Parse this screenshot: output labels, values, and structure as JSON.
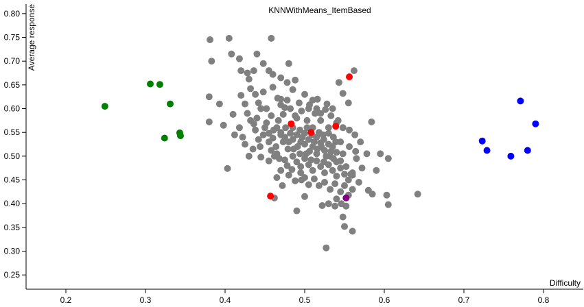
{
  "chart_data": {
    "type": "scatter",
    "title": "KNNWithMeans_ItemBased",
    "xlabel": "Difficulty",
    "ylabel": "Average response",
    "xlim": [
      0.15,
      0.85
    ],
    "ylim": [
      0.22,
      0.82
    ],
    "grid": false,
    "x_ticks": [
      0.2,
      0.3,
      0.4,
      0.5,
      0.6,
      0.7,
      0.8
    ],
    "y_ticks": [
      0.25,
      0.3,
      0.35,
      0.4,
      0.45,
      0.5,
      0.55,
      0.6,
      0.65,
      0.7,
      0.75,
      0.8
    ],
    "x_tick_labels": [
      "0.2",
      "0.3",
      "0.4",
      "0.5",
      "0.6",
      "0.7",
      "0.8"
    ],
    "y_tick_labels": [
      "0.25",
      "0.30",
      "0.35",
      "0.40",
      "0.45",
      "0.50",
      "0.55",
      "0.60",
      "0.65",
      "0.70",
      "0.75",
      "0.80"
    ],
    "series": [
      {
        "color": "#808080",
        "points": [
          [
            0.381,
            0.745
          ],
          [
            0.405,
            0.748
          ],
          [
            0.458,
            0.748
          ],
          [
            0.383,
            0.7
          ],
          [
            0.408,
            0.715
          ],
          [
            0.418,
            0.705
          ],
          [
            0.44,
            0.715
          ],
          [
            0.48,
            0.695
          ],
          [
            0.38,
            0.625
          ],
          [
            0.38,
            0.572
          ],
          [
            0.42,
            0.68
          ],
          [
            0.428,
            0.675
          ],
          [
            0.43,
            0.662
          ],
          [
            0.436,
            0.68
          ],
          [
            0.448,
            0.695
          ],
          [
            0.455,
            0.68
          ],
          [
            0.46,
            0.672
          ],
          [
            0.47,
            0.665
          ],
          [
            0.478,
            0.655
          ],
          [
            0.488,
            0.66
          ],
          [
            0.42,
            0.628
          ],
          [
            0.425,
            0.61
          ],
          [
            0.432,
            0.642
          ],
          [
            0.438,
            0.63
          ],
          [
            0.442,
            0.612
          ],
          [
            0.448,
            0.635
          ],
          [
            0.452,
            0.6
          ],
          [
            0.46,
            0.645
          ],
          [
            0.466,
            0.622
          ],
          [
            0.47,
            0.608
          ],
          [
            0.473,
            0.588
          ],
          [
            0.478,
            0.618
          ],
          [
            0.482,
            0.6
          ],
          [
            0.485,
            0.64
          ],
          [
            0.49,
            0.58
          ],
          [
            0.493,
            0.612
          ],
          [
            0.496,
            0.595
          ],
          [
            0.5,
            0.63
          ],
          [
            0.503,
            0.575
          ],
          [
            0.506,
            0.608
          ],
          [
            0.51,
            0.56
          ],
          [
            0.513,
            0.59
          ],
          [
            0.516,
            0.62
          ],
          [
            0.52,
            0.575
          ],
          [
            0.523,
            0.545
          ],
          [
            0.526,
            0.598
          ],
          [
            0.53,
            0.56
          ],
          [
            0.533,
            0.585
          ],
          [
            0.536,
            0.54
          ],
          [
            0.54,
            0.57
          ],
          [
            0.418,
            0.56
          ],
          [
            0.422,
            0.54
          ],
          [
            0.425,
            0.525
          ],
          [
            0.428,
            0.59
          ],
          [
            0.432,
            0.575
          ],
          [
            0.435,
            0.515
          ],
          [
            0.438,
            0.555
          ],
          [
            0.442,
            0.535
          ],
          [
            0.445,
            0.6
          ],
          [
            0.448,
            0.545
          ],
          [
            0.452,
            0.57
          ],
          [
            0.455,
            0.53
          ],
          [
            0.458,
            0.585
          ],
          [
            0.461,
            0.555
          ],
          [
            0.464,
            0.52
          ],
          [
            0.467,
            0.575
          ],
          [
            0.47,
            0.545
          ],
          [
            0.473,
            0.53
          ],
          [
            0.476,
            0.56
          ],
          [
            0.479,
            0.515
          ],
          [
            0.482,
            0.548
          ],
          [
            0.485,
            0.535
          ],
          [
            0.488,
            0.585
          ],
          [
            0.491,
            0.52
          ],
          [
            0.494,
            0.555
          ],
          [
            0.497,
            0.54
          ],
          [
            0.5,
            0.525
          ],
          [
            0.503,
            0.56
          ],
          [
            0.506,
            0.51
          ],
          [
            0.509,
            0.545
          ],
          [
            0.512,
            0.53
          ],
          [
            0.515,
            0.505
          ],
          [
            0.518,
            0.55
          ],
          [
            0.521,
            0.52
          ],
          [
            0.524,
            0.535
          ],
          [
            0.527,
            0.5
          ],
          [
            0.53,
            0.525
          ],
          [
            0.533,
            0.51
          ],
          [
            0.536,
            0.495
          ],
          [
            0.539,
            0.53
          ],
          [
            0.445,
            0.498
          ],
          [
            0.455,
            0.49
          ],
          [
            0.465,
            0.505
          ],
          [
            0.475,
            0.492
          ],
          [
            0.485,
            0.5
          ],
          [
            0.49,
            0.488
          ],
          [
            0.495,
            0.478
          ],
          [
            0.5,
            0.495
          ],
          [
            0.505,
            0.482
          ],
          [
            0.51,
            0.47
          ],
          [
            0.515,
            0.49
          ],
          [
            0.52,
            0.478
          ],
          [
            0.525,
            0.465
          ],
          [
            0.53,
            0.482
          ],
          [
            0.535,
            0.47
          ],
          [
            0.54,
            0.458
          ],
          [
            0.545,
            0.475
          ],
          [
            0.55,
            0.462
          ],
          [
            0.555,
            0.45
          ],
          [
            0.56,
            0.465
          ],
          [
            0.48,
            0.46
          ],
          [
            0.488,
            0.448
          ],
          [
            0.495,
            0.465
          ],
          [
            0.5,
            0.455
          ],
          [
            0.505,
            0.44
          ],
          [
            0.512,
            0.452
          ],
          [
            0.518,
            0.438
          ],
          [
            0.525,
            0.445
          ],
          [
            0.532,
            0.43
          ],
          [
            0.538,
            0.442
          ],
          [
            0.545,
            0.425
          ],
          [
            0.55,
            0.438
          ],
          [
            0.555,
            0.418
          ],
          [
            0.56,
            0.43
          ],
          [
            0.546,
            0.4
          ],
          [
            0.538,
            0.395
          ],
          [
            0.522,
            0.396
          ],
          [
            0.53,
            0.4
          ],
          [
            0.5,
            0.415
          ],
          [
            0.49,
            0.385
          ],
          [
            0.472,
            0.438
          ],
          [
            0.465,
            0.455
          ],
          [
            0.462,
            0.412
          ],
          [
            0.548,
            0.372
          ],
          [
            0.55,
            0.352
          ],
          [
            0.56,
            0.342
          ],
          [
            0.527,
            0.307
          ],
          [
            0.552,
            0.395
          ],
          [
            0.54,
            0.41
          ],
          [
            0.558,
            0.462
          ],
          [
            0.545,
            0.49
          ],
          [
            0.552,
            0.478
          ],
          [
            0.56,
            0.46
          ],
          [
            0.565,
            0.495
          ],
          [
            0.568,
            0.445
          ],
          [
            0.572,
            0.475
          ],
          [
            0.578,
            0.505
          ],
          [
            0.58,
            0.428
          ],
          [
            0.585,
            0.42
          ],
          [
            0.59,
            0.47
          ],
          [
            0.595,
            0.505
          ],
          [
            0.603,
            0.418
          ],
          [
            0.605,
            0.495
          ],
          [
            0.605,
            0.398
          ],
          [
            0.642,
            0.42
          ],
          [
            0.584,
            0.572
          ],
          [
            0.562,
            0.68
          ],
          [
            0.543,
            0.655
          ],
          [
            0.548,
            0.632
          ],
          [
            0.555,
            0.612
          ],
          [
            0.403,
            0.474
          ],
          [
            0.393,
            0.61
          ],
          [
            0.398,
            0.565
          ],
          [
            0.41,
            0.588
          ],
          [
            0.412,
            0.545
          ],
          [
            0.43,
            0.5
          ],
          [
            0.44,
            0.58
          ],
          [
            0.462,
            0.5
          ],
          [
            0.47,
            0.62
          ],
          [
            0.475,
            0.602
          ],
          [
            0.505,
            0.6
          ],
          [
            0.51,
            0.618
          ],
          [
            0.515,
            0.6
          ],
          [
            0.52,
            0.59
          ],
          [
            0.528,
            0.61
          ],
          [
            0.535,
            0.6
          ],
          [
            0.542,
            0.575
          ],
          [
            0.548,
            0.56
          ],
          [
            0.556,
            0.555
          ],
          [
            0.563,
            0.545
          ],
          [
            0.45,
            0.56
          ],
          [
            0.455,
            0.548
          ],
          [
            0.46,
            0.538
          ],
          [
            0.465,
            0.56
          ],
          [
            0.47,
            0.55
          ],
          [
            0.475,
            0.54
          ],
          [
            0.48,
            0.53
          ],
          [
            0.485,
            0.56
          ],
          [
            0.49,
            0.545
          ],
          [
            0.495,
            0.53
          ],
          [
            0.5,
            0.548
          ],
          [
            0.505,
            0.535
          ],
          [
            0.51,
            0.52
          ],
          [
            0.515,
            0.54
          ],
          [
            0.52,
            0.528
          ],
          [
            0.525,
            0.512
          ],
          [
            0.53,
            0.548
          ],
          [
            0.535,
            0.52
          ],
          [
            0.54,
            0.508
          ],
          [
            0.545,
            0.53
          ],
          [
            0.436,
            0.568
          ],
          [
            0.444,
            0.52
          ],
          [
            0.458,
            0.512
          ],
          [
            0.468,
            0.495
          ],
          [
            0.478,
            0.48
          ],
          [
            0.486,
            0.515
          ],
          [
            0.494,
            0.505
          ],
          [
            0.502,
            0.505
          ],
          [
            0.508,
            0.492
          ],
          [
            0.516,
            0.515
          ],
          [
            0.524,
            0.488
          ],
          [
            0.532,
            0.5
          ],
          [
            0.54,
            0.488
          ],
          [
            0.548,
            0.505
          ],
          [
            0.556,
            0.52
          ],
          [
            0.564,
            0.51
          ],
          [
            0.57,
            0.53
          ],
          [
            0.47,
            0.47
          ],
          [
            0.484,
            0.472
          ],
          [
            0.496,
            0.45
          ]
        ]
      },
      {
        "color": "#008000",
        "points": [
          [
            0.249,
            0.605
          ],
          [
            0.306,
            0.652
          ],
          [
            0.318,
            0.651
          ],
          [
            0.331,
            0.61
          ],
          [
            0.343,
            0.549
          ],
          [
            0.344,
            0.543
          ],
          [
            0.324,
            0.538
          ]
        ]
      },
      {
        "color": "#0000ff",
        "points": [
          [
            0.771,
            0.616
          ],
          [
            0.79,
            0.568
          ],
          [
            0.723,
            0.532
          ],
          [
            0.729,
            0.512
          ],
          [
            0.759,
            0.5
          ],
          [
            0.78,
            0.512
          ]
        ]
      },
      {
        "color": "#ff0000",
        "points": [
          [
            0.556,
            0.667
          ],
          [
            0.483,
            0.568
          ],
          [
            0.508,
            0.55
          ],
          [
            0.539,
            0.563
          ],
          [
            0.457,
            0.416
          ]
        ]
      },
      {
        "color": "#800080",
        "points": [
          [
            0.552,
            0.412
          ]
        ]
      }
    ]
  }
}
